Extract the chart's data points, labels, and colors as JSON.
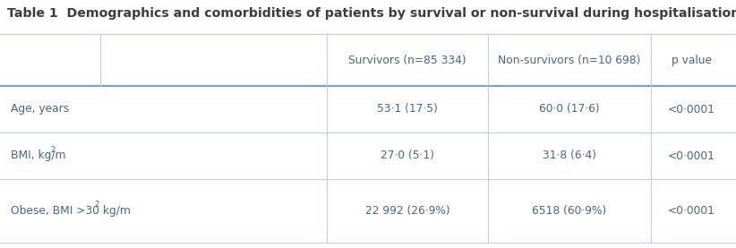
{
  "title": "Table 1  Demographics and comorbidities of patients by survival or non-survival during hospitalisation",
  "title_color": "#3d3d3d",
  "title_fontsize": 10.2,
  "background_color": "#ffffff",
  "header_labels": [
    "Survivors (n=85 334)",
    "Non-survivors (n=10 698)",
    "p value"
  ],
  "row_labels": [
    "Age, years",
    "BMI, kg/m",
    "Obese, BMI >30 kg/m"
  ],
  "row_label_super": [
    false,
    true,
    true
  ],
  "survivors": [
    "53·1 (17·5)",
    "27·0 (5·1)",
    "22 992 (26·9%)"
  ],
  "nonsurvivors": [
    "60·0 (17·6)",
    "31·8 (6·4)",
    "6518 (60·9%)"
  ],
  "pvalues": [
    "<0·0001",
    "<0·0001",
    "<0·0001"
  ],
  "text_color": "#4a6580",
  "header_color": "#4a6580",
  "line_color_light": "#c5cce0",
  "line_color_heavy": "#8899bb",
  "title_bold_color": "#3d3d3d"
}
